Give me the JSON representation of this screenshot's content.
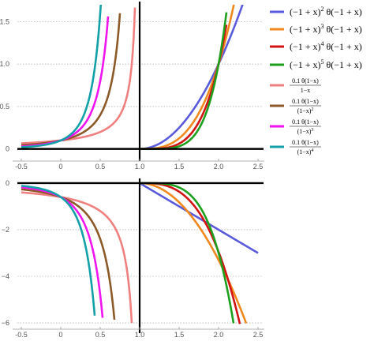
{
  "chart_data": [
    {
      "type": "line",
      "panel": "top",
      "xlim": [
        -0.55,
        2.55
      ],
      "ylim": [
        -0.05,
        1.7
      ],
      "x_ticks": [
        "-0.5",
        "0",
        "0.5",
        "1.0",
        "1.5",
        "2.0",
        "2.5"
      ],
      "x_tick_values": [
        -0.5,
        0,
        0.5,
        1.0,
        1.5,
        2.0,
        2.5
      ],
      "y_ticks": [
        "0",
        "0.5",
        "1.0",
        "1.5"
      ],
      "y_tick_values": [
        0,
        0.5,
        1.0,
        1.5
      ],
      "grid": "dotted horizontal at y ticks",
      "series": [
        {
          "name": "(−1 + x)² θ(−1 + x)",
          "color": "#5a5adc",
          "kind": "power",
          "n": 2,
          "x": [
            1.0,
            1.25,
            1.5,
            1.75,
            2.0,
            2.25,
            2.5
          ],
          "y": [
            0,
            0.0625,
            0.25,
            0.5625,
            1.0,
            1.5625,
            2.25
          ]
        },
        {
          "name": "(−1 + x)³ θ(−1 + x)",
          "color": "#f0881e",
          "kind": "power",
          "n": 3,
          "x": [
            1.0,
            1.25,
            1.5,
            1.75,
            2.0,
            2.1,
            2.2
          ],
          "y": [
            0,
            0.0156,
            0.125,
            0.4219,
            1.0,
            1.331,
            1.728
          ]
        },
        {
          "name": "(−1 + x)⁴ θ(−1 + x)",
          "color": "#d21414",
          "kind": "power",
          "n": 4,
          "x": [
            1.0,
            1.25,
            1.5,
            1.75,
            2.0,
            2.1
          ],
          "y": [
            0,
            0.0039,
            0.0625,
            0.3164,
            1.0,
            1.4641
          ]
        },
        {
          "name": "(−1 + x)⁵ θ(−1 + x)",
          "color": "#1ea01e",
          "kind": "power",
          "n": 5,
          "x": [
            1.0,
            1.25,
            1.5,
            1.75,
            2.0,
            2.1
          ],
          "y": [
            0,
            0.001,
            0.0313,
            0.2373,
            1.0,
            1.6105
          ]
        },
        {
          "name": "0.1 θ(1−x) / (1−x)",
          "color": "#f08080",
          "kind": "pole",
          "n": 1,
          "x": [
            -0.5,
            0,
            0.5,
            0.75,
            0.9,
            0.94
          ],
          "y": [
            0.0667,
            0.1,
            0.2,
            0.4,
            1.0,
            1.667
          ]
        },
        {
          "name": "0.1 θ(1−x) / (1−x)²",
          "color": "#8c5a28",
          "kind": "pole",
          "n": 2,
          "x": [
            -0.5,
            0,
            0.5,
            0.75
          ],
          "y": [
            0.0444,
            0.1,
            0.4,
            1.6
          ]
        },
        {
          "name": "0.1 θ(1−x) / (1−x)³",
          "color": "#f014f0",
          "kind": "pole",
          "n": 3,
          "x": [
            -0.5,
            0,
            0.5,
            0.6
          ],
          "y": [
            0.0296,
            0.1,
            0.8,
            1.5625
          ]
        },
        {
          "name": "0.1 θ(1−x) / (1−x)⁴",
          "color": "#14a0a8",
          "kind": "pole",
          "n": 4,
          "x": [
            -0.5,
            0,
            0.5,
            0.53
          ],
          "y": [
            0.0198,
            0.1,
            1.6,
            2.05
          ]
        }
      ]
    },
    {
      "type": "line",
      "panel": "bottom",
      "xlim": [
        -0.55,
        2.55
      ],
      "ylim": [
        -6.1,
        0.2
      ],
      "x_ticks": [
        "-0.5",
        "0",
        "0.5",
        "1.0",
        "1.5",
        "2.0",
        "2.5"
      ],
      "x_tick_values": [
        -0.5,
        0,
        0.5,
        1.0,
        1.5,
        2.0,
        2.5
      ],
      "y_ticks": [
        "0",
        "−2",
        "−4",
        "−6"
      ],
      "y_tick_values": [
        0,
        -2,
        -4,
        -6
      ],
      "grid": "dotted horizontal at y ticks",
      "series": [
        {
          "name": "blue",
          "color": "#5a5adc",
          "kind": "linear",
          "x": [
            1.0,
            2.5
          ],
          "y": [
            0,
            -3.0
          ]
        },
        {
          "name": "orange",
          "color": "#f0881e",
          "kind": "power",
          "n": 2,
          "coef": -3.3,
          "x": [
            1.0,
            1.5,
            2.0,
            2.35
          ],
          "y": [
            0,
            -0.825,
            -3.3,
            -6.0
          ]
        },
        {
          "name": "red",
          "color": "#d21414",
          "kind": "power",
          "n": 3,
          "coef": -2.95,
          "x": [
            1.0,
            1.5,
            1.75,
            2.0,
            2.27
          ],
          "y": [
            0,
            -0.369,
            -1.24,
            -2.95,
            -6.0
          ]
        },
        {
          "name": "green",
          "color": "#1ea01e",
          "kind": "power",
          "n": 4,
          "coef": -3.0,
          "x": [
            1.0,
            1.5,
            1.75,
            2.0,
            2.19
          ],
          "y": [
            0,
            -0.188,
            -0.949,
            -3.0,
            -6.0
          ]
        },
        {
          "name": "salmon",
          "color": "#f08080",
          "kind": "pole",
          "n": 1,
          "coef": -0.6,
          "x": [
            -0.5,
            0,
            0.5,
            0.75,
            0.9
          ],
          "y": [
            -0.4,
            -0.6,
            -1.2,
            -2.4,
            -6.0
          ]
        },
        {
          "name": "brown",
          "color": "#8c5a28",
          "kind": "pole",
          "n": 2,
          "coef": -0.6,
          "x": [
            -0.5,
            0,
            0.5,
            0.68
          ],
          "y": [
            -0.267,
            -0.6,
            -2.4,
            -5.86
          ]
        },
        {
          "name": "magenta",
          "color": "#f014f0",
          "kind": "pole",
          "n": 3,
          "coef": -0.6,
          "x": [
            -0.5,
            0,
            0.3,
            0.53
          ],
          "y": [
            -0.178,
            -0.6,
            -1.75,
            -5.78
          ]
        },
        {
          "name": "teal",
          "color": "#14a0a8",
          "kind": "pole",
          "n": 4,
          "coef": -0.6,
          "x": [
            -0.5,
            0,
            0.3,
            0.43
          ],
          "y": [
            -0.119,
            -0.6,
            -2.5,
            -5.69
          ]
        }
      ]
    }
  ],
  "legend": {
    "placement": "right",
    "items": [
      {
        "type": "text",
        "main": "(−1 + x)",
        "exp": "2",
        "rest": " θ(−1 + x)",
        "color": "#5a5adc"
      },
      {
        "type": "text",
        "main": "(−1 + x)",
        "exp": "3",
        "rest": " θ(−1 + x)",
        "color": "#f0881e"
      },
      {
        "type": "text",
        "main": "(−1 + x)",
        "exp": "4",
        "rest": " θ(−1 + x)",
        "color": "#d21414"
      },
      {
        "type": "text",
        "main": "(−1 + x)",
        "exp": "5",
        "rest": " θ(−1 + x)",
        "color": "#1ea01e"
      },
      {
        "type": "frac",
        "num": "0.1 θ(1−x)",
        "den": "1−x",
        "den_exp": "",
        "color": "#f08080"
      },
      {
        "type": "frac",
        "num": "0.1 θ(1−x)",
        "den": "(1−x)",
        "den_exp": "2",
        "color": "#8c5a28"
      },
      {
        "type": "frac",
        "num": "0.1 θ(1−x)",
        "den": "(1−x)",
        "den_exp": "3",
        "color": "#f014f0"
      },
      {
        "type": "frac",
        "num": "0.1 θ(1−x)",
        "den": "(1−x)",
        "den_exp": "4",
        "color": "#14a0a8"
      }
    ]
  }
}
